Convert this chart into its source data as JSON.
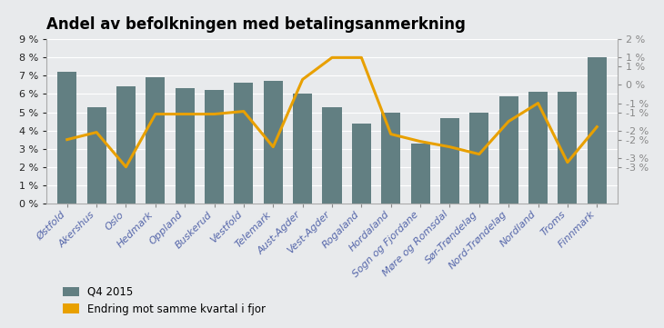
{
  "title": "Andel av befolkningen med betalingsanmerkning",
  "categories": [
    "Østfold",
    "Akershus",
    "Oslo",
    "Hedmark",
    "Oppland",
    "Buskerud",
    "Vestfold",
    "Telemark",
    "Aust-Agder",
    "Vest-Agder",
    "Rogaland",
    "Hordaland",
    "Sogn og Fjordane",
    "Møre og Romsdal",
    "Sør-Trøndelag",
    "Nord-Trøndelag",
    "Nordland",
    "Troms",
    "Finnmark"
  ],
  "bar_values": [
    7.2,
    5.3,
    6.4,
    6.9,
    6.3,
    6.2,
    6.6,
    6.7,
    6.0,
    5.3,
    4.4,
    5.0,
    3.3,
    4.7,
    5.0,
    5.85,
    6.1,
    6.1,
    8.0
  ],
  "line_values_pct": [
    3.5,
    3.9,
    2.0,
    4.9,
    4.9,
    4.9,
    5.05,
    3.1,
    6.8,
    8.0,
    8.0,
    3.8,
    3.4,
    3.1,
    2.7,
    4.5,
    5.5,
    2.25,
    4.2
  ],
  "bar_color": "#627f82",
  "line_color": "#e8a000",
  "background_color": "#e8eaec",
  "plot_bg_color": "#e8eaec",
  "legend_bar": "Q4 2015",
  "legend_line": "Endring mot samme kvartal i fjor",
  "ylim_left": [
    0,
    9
  ],
  "left_yticks": [
    0,
    1,
    2,
    3,
    4,
    5,
    6,
    7,
    8,
    9
  ],
  "right_ytick_values": [
    2,
    1,
    1,
    0,
    -1,
    -1,
    -2,
    -2,
    -3,
    -3
  ],
  "right_ytick_positions": [
    9,
    8,
    7.5,
    6.5,
    5.5,
    5.0,
    4.0,
    3.5,
    2.5,
    2.0
  ],
  "title_fontsize": 12,
  "tick_fontsize": 8,
  "legend_fontsize": 8.5,
  "xtick_color": "#5566aa",
  "ytick_color": "#222222"
}
